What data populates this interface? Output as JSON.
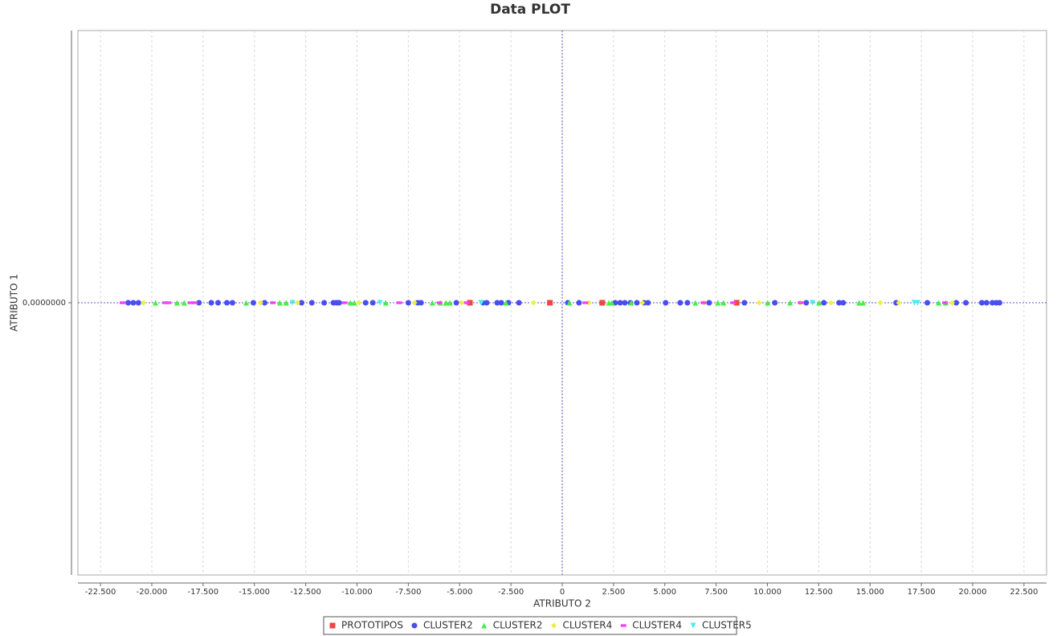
{
  "chart_data": {
    "type": "scatter",
    "title": "Data PLOT",
    "x_label": "ATRIBUTO 2",
    "y_label": "ATRIBUTO 1",
    "xlim": [
      -23600,
      23600
    ],
    "ylim": [
      -1,
      1
    ],
    "xticks": [
      {
        "value": -22500,
        "label": "-22.500"
      },
      {
        "value": -20000,
        "label": "-20.000"
      },
      {
        "value": -17500,
        "label": "-17.500"
      },
      {
        "value": -15000,
        "label": "-15.000"
      },
      {
        "value": -12500,
        "label": "-12.500"
      },
      {
        "value": -10000,
        "label": "-10.000"
      },
      {
        "value": -7500,
        "label": "-7.500"
      },
      {
        "value": -5000,
        "label": "-5.000"
      },
      {
        "value": -2500,
        "label": "-2.500"
      },
      0,
      {
        "value": 2500,
        "label": "2.500"
      },
      {
        "value": 5000,
        "label": "5.000"
      },
      {
        "value": 7500,
        "label": "7.500"
      },
      {
        "value": 10000,
        "label": "10.000"
      },
      {
        "value": 12500,
        "label": "12.500"
      },
      {
        "value": 15000,
        "label": "15.000"
      },
      {
        "value": 17500,
        "label": "17.500"
      },
      {
        "value": 20000,
        "label": "20.000"
      },
      {
        "value": 22500,
        "label": "22.500"
      }
    ],
    "yticks": [
      {
        "value": 0,
        "label": "0,0000000"
      }
    ],
    "grid": true,
    "series": [
      {
        "name": "PROTOTIPOS",
        "color": "#f04545",
        "marker": "square",
        "x": [
          -4500,
          -600,
          1950,
          8500
        ],
        "y": [
          0,
          0,
          0,
          0
        ]
      },
      {
        "name": "CLUSTER2",
        "color": "#4a4ef0",
        "marker": "circle",
        "x": [
          -21150,
          -20900,
          -20650,
          -17700,
          -17100,
          -16770,
          -16340,
          -16070,
          -15050,
          -14500,
          -12700,
          -12200,
          -11600,
          -11150,
          -11000,
          -10870,
          -9580,
          -9230,
          -7500,
          -7040,
          -6880,
          -5160,
          -3870,
          -3680,
          -3170,
          -2970,
          -2620,
          -2110,
          270,
          820,
          2580,
          2820,
          3050,
          3320,
          3640,
          3990,
          4180,
          5040,
          5750,
          6100,
          7160,
          8880,
          10360,
          11890,
          12750,
          13490,
          13690,
          16270,
          17790,
          19200,
          19670,
          20450,
          20680,
          20960,
          21150,
          21310
        ],
        "y": [
          0,
          0,
          0,
          0,
          0,
          0,
          0,
          0,
          0,
          0,
          0,
          0,
          0,
          0,
          0,
          0,
          0,
          0,
          0,
          0,
          0,
          0,
          0,
          0,
          0,
          0,
          0,
          0,
          0,
          0,
          0,
          0,
          0,
          0,
          0,
          0,
          0,
          0,
          0,
          0,
          0,
          0,
          0,
          0,
          0,
          0,
          0,
          0,
          0,
          0,
          0,
          0,
          0,
          0,
          0,
          0
        ]
      },
      {
        "name": "CLUSTER2",
        "color": "#45ee45",
        "marker": "triangle-up",
        "x": [
          -19820,
          -18770,
          -18420,
          -15400,
          -13760,
          -13450,
          -10320,
          -10130,
          -8600,
          -6330,
          -5940,
          -5670,
          -5470,
          -2740,
          350,
          2270,
          2420,
          3360,
          6490,
          7590,
          7860,
          10010,
          11100,
          12510,
          14470,
          14660,
          18340,
          18690
        ],
        "y": [
          0,
          0,
          0,
          0,
          0,
          0,
          0,
          0,
          0,
          0,
          0,
          0,
          0,
          0,
          0,
          0,
          0,
          0,
          0,
          0,
          0,
          0,
          0,
          0,
          0,
          0,
          0,
          0
        ]
      },
      {
        "name": "CLUSTER4",
        "color": "#eeee45",
        "marker": "diamond",
        "x": [
          -20400,
          -14700,
          -12900,
          -9900,
          -7200,
          -4900,
          -1400,
          1300,
          3900,
          6900,
          9600,
          11600,
          13100,
          15500,
          16400,
          19000
        ],
        "y": [
          0,
          0,
          0,
          0,
          0,
          0,
          0,
          0,
          0,
          0,
          0,
          0,
          0,
          0,
          0,
          0
        ]
      },
      {
        "name": "CLUSTER4",
        "color": "#ee45ee",
        "marker": "hbar",
        "x": [
          -21430,
          -19350,
          -19200,
          -18100,
          -17900,
          -14100,
          -10600,
          -7940,
          -5980,
          -4650,
          1130,
          6880,
          8330,
          11610,
          18650
        ],
        "y": [
          0,
          0,
          0,
          0,
          0,
          0,
          0,
          0,
          0,
          0,
          0,
          0,
          0,
          0,
          0
        ]
      },
      {
        "name": "CLUSTER5",
        "color": "#45eeee",
        "marker": "triangle-down",
        "x": [
          -13140,
          -8880,
          -3950,
          12200,
          17160,
          17320
        ],
        "y": [
          0,
          0,
          0,
          0,
          0,
          0
        ]
      }
    ]
  }
}
